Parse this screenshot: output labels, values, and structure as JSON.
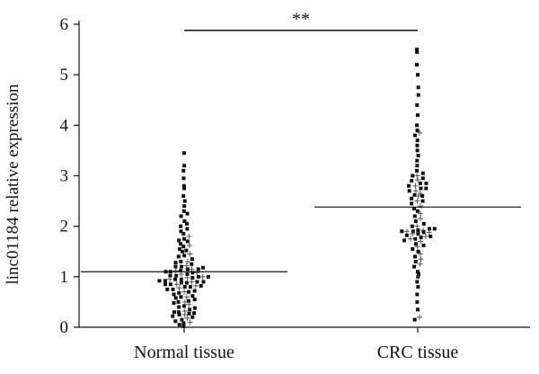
{
  "chart_data": {
    "type": "scatter",
    "subtype": "dot-plot-with-mean-line",
    "ylabel": "linc01184 relative expression",
    "xlabel": "",
    "ylim": [
      0,
      6
    ],
    "yticks": [
      0,
      1,
      2,
      3,
      4,
      5,
      6
    ],
    "categories": [
      "Normal tissue",
      "CRC tissue"
    ],
    "series": [
      {
        "category": "Normal tissue",
        "mean": 1.1,
        "values": [
          0.02,
          0.05,
          0.08,
          0.1,
          0.12,
          0.15,
          0.18,
          0.2,
          0.22,
          0.25,
          0.25,
          0.27,
          0.28,
          0.3,
          0.3,
          0.32,
          0.35,
          0.38,
          0.4,
          0.42,
          0.45,
          0.48,
          0.5,
          0.5,
          0.52,
          0.55,
          0.58,
          0.6,
          0.6,
          0.62,
          0.65,
          0.68,
          0.7,
          0.7,
          0.72,
          0.75,
          0.75,
          0.78,
          0.8,
          0.8,
          0.82,
          0.82,
          0.85,
          0.85,
          0.85,
          0.88,
          0.88,
          0.9,
          0.9,
          0.9,
          0.92,
          0.92,
          0.95,
          0.95,
          0.95,
          0.98,
          0.98,
          1.0,
          1.0,
          1.0,
          1.02,
          1.02,
          1.05,
          1.05,
          1.08,
          1.08,
          1.1,
          1.1,
          1.12,
          1.12,
          1.15,
          1.15,
          1.15,
          1.18,
          1.2,
          1.2,
          1.22,
          1.25,
          1.28,
          1.3,
          1.3,
          1.35,
          1.4,
          1.42,
          1.45,
          1.5,
          1.52,
          1.55,
          1.6,
          1.62,
          1.65,
          1.7,
          1.72,
          1.75,
          1.8,
          1.85,
          1.9,
          1.95,
          2.0,
          2.05,
          2.1,
          2.2,
          2.25,
          2.3,
          2.4,
          2.5,
          2.6,
          2.75,
          2.8,
          2.95,
          3.1,
          3.2,
          3.45
        ]
      },
      {
        "category": "CRC tissue",
        "mean": 2.38,
        "values": [
          0.15,
          0.2,
          0.35,
          0.5,
          0.65,
          0.8,
          0.9,
          1.0,
          1.05,
          1.1,
          1.2,
          1.25,
          1.3,
          1.35,
          1.4,
          1.45,
          1.5,
          1.55,
          1.6,
          1.62,
          1.65,
          1.7,
          1.72,
          1.75,
          1.75,
          1.78,
          1.8,
          1.8,
          1.82,
          1.85,
          1.85,
          1.88,
          1.88,
          1.9,
          1.9,
          1.9,
          1.92,
          1.92,
          1.95,
          1.95,
          2.0,
          2.0,
          2.05,
          2.1,
          2.15,
          2.2,
          2.25,
          2.3,
          2.35,
          2.4,
          2.45,
          2.5,
          2.5,
          2.55,
          2.6,
          2.6,
          2.62,
          2.65,
          2.7,
          2.7,
          2.75,
          2.75,
          2.8,
          2.8,
          2.85,
          2.85,
          2.9,
          2.92,
          2.95,
          3.0,
          3.0,
          3.05,
          3.1,
          3.2,
          3.3,
          3.4,
          3.5,
          3.6,
          3.7,
          3.8,
          3.85,
          3.9,
          4.0,
          4.2,
          4.4,
          4.6,
          4.75,
          5.0,
          5.2,
          5.45,
          5.5
        ]
      }
    ],
    "annotation": {
      "text": "**",
      "from": "Normal tissue",
      "to": "CRC tissue",
      "y": 5.88
    }
  }
}
